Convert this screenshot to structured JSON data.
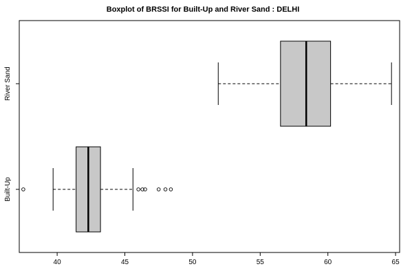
{
  "chart_data": {
    "type": "boxplot",
    "orientation": "horizontal",
    "title": "Boxplot of BRSSI for Built-Up and River Sand : DELHI",
    "xlabel": "",
    "ylabel": "",
    "xlim": [
      37.2,
      65.3
    ],
    "x_ticks": [
      40,
      45,
      50,
      55,
      60,
      65
    ],
    "x_tick_labels": [
      "40",
      "45",
      "50",
      "55",
      "60",
      "65"
    ],
    "categories": [
      "River Sand",
      "Built-Up"
    ],
    "boxes": [
      {
        "category": "River Sand",
        "whisker_low": 51.9,
        "q1": 56.5,
        "median": 58.4,
        "q3": 60.2,
        "whisker_high": 64.7,
        "outliers": []
      },
      {
        "category": "Built-Up",
        "whisker_low": 39.7,
        "q1": 41.4,
        "median": 42.3,
        "q3": 43.2,
        "whisker_high": 45.6,
        "outliers": [
          37.5,
          46.0,
          46.3,
          46.5,
          47.5,
          48.0,
          48.4
        ]
      }
    ],
    "box_fill": "#c8c8c8",
    "line_color": "#000000",
    "grid": false
  }
}
